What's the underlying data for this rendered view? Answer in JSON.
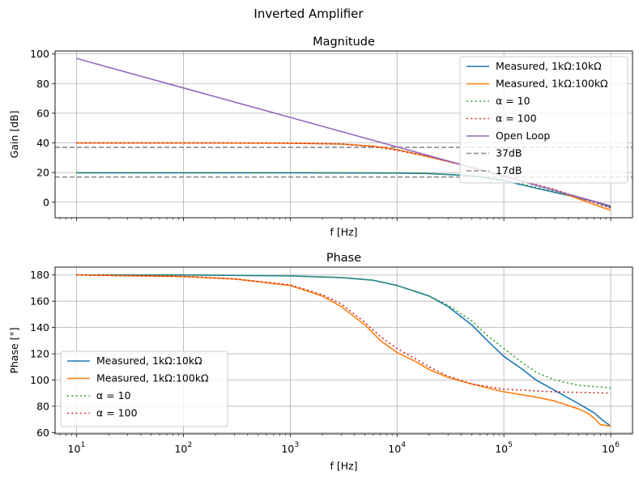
{
  "figure": {
    "suptitle": "Inverted Amplifier"
  },
  "colors": {
    "measured_10k": "#1f77b4",
    "measured_100k": "#ff7f0e",
    "alpha_10": "#2ca02c",
    "alpha_100": "#d62728",
    "open_loop": "#9467bd",
    "ref_lines": "#8c8c8c",
    "grid": "#b0b0b0"
  },
  "chart_data": [
    {
      "type": "line",
      "title": "Magnitude",
      "xlabel": "f [Hz]",
      "ylabel": "Gain [dB]",
      "xscale": "log",
      "xlim": [
        6.3,
        1600000
      ],
      "ylim": [
        -10.5,
        102
      ],
      "yticks": [
        0,
        20,
        40,
        60,
        80,
        100
      ],
      "show_x_tick_labels": false,
      "grid": true,
      "legend_position": "top-right",
      "hlines": [
        {
          "name": "37dB",
          "y": 37,
          "color": "#8c8c8c",
          "dash": "dashed"
        },
        {
          "name": "17dB",
          "y": 17,
          "color": "#8c8c8c",
          "dash": "dashed"
        }
      ],
      "series": [
        {
          "name": "Measured, 1kΩ:10kΩ",
          "color": "#1f77b4",
          "dash": "solid",
          "x": [
            10,
            100,
            1000,
            10000,
            20000,
            40000,
            60000,
            100000,
            200000,
            400000,
            700000,
            1000000
          ],
          "y": [
            19.8,
            19.8,
            19.8,
            19.6,
            19.3,
            18.2,
            17.2,
            14.5,
            9.5,
            4.5,
            0.5,
            -3.5
          ]
        },
        {
          "name": "Measured, 1kΩ:100kΩ",
          "color": "#ff7f0e",
          "dash": "solid",
          "x": [
            10,
            100,
            1000,
            3000,
            6000,
            10000,
            20000,
            40000,
            100000,
            300000,
            1000000
          ],
          "y": [
            40,
            40,
            39.8,
            39.2,
            37.8,
            35.5,
            30.5,
            25.3,
            17.5,
            8.0,
            -5.5
          ]
        },
        {
          "name": "α = 10",
          "color": "#2ca02c",
          "dash": "dotted",
          "x": [
            10,
            100,
            1000,
            10000,
            20000,
            40000,
            60000,
            100000,
            200000,
            400000,
            700000,
            1000000
          ],
          "y": [
            20,
            20,
            20,
            19.8,
            19.4,
            18.4,
            17.3,
            15.0,
            10.0,
            5.0,
            0.5,
            -3.5
          ]
        },
        {
          "name": "α = 100",
          "color": "#d62728",
          "dash": "dotted",
          "x": [
            10,
            100,
            1000,
            3000,
            6000,
            10000,
            20000,
            40000,
            100000,
            300000,
            1000000
          ],
          "y": [
            40,
            40,
            39.9,
            39.3,
            37.5,
            35.0,
            30.8,
            25.2,
            17.8,
            8.5,
            -4.0
          ]
        },
        {
          "name": "Open Loop",
          "color": "#9467bd",
          "dash": "solid",
          "x": [
            10,
            1000000
          ],
          "y": [
            97,
            -2.5
          ]
        }
      ]
    },
    {
      "type": "line",
      "title": "Phase",
      "xlabel": "f [Hz]",
      "ylabel": "Phase [°]",
      "xscale": "log",
      "xlim": [
        6.3,
        1600000
      ],
      "ylim": [
        59,
        186
      ],
      "yticks": [
        60,
        80,
        100,
        120,
        140,
        160,
        180
      ],
      "xticks": [
        {
          "value": 10,
          "label": "10",
          "exp": "1"
        },
        {
          "value": 100,
          "label": "10",
          "exp": "2"
        },
        {
          "value": 1000,
          "label": "10",
          "exp": "3"
        },
        {
          "value": 10000,
          "label": "10",
          "exp": "4"
        },
        {
          "value": 100000,
          "label": "10",
          "exp": "5"
        },
        {
          "value": 1000000,
          "label": "10",
          "exp": "6"
        }
      ],
      "show_x_tick_labels": true,
      "grid": true,
      "legend_position": "lower-left",
      "series": [
        {
          "name": "Measured, 1kΩ:10kΩ",
          "color": "#1f77b4",
          "dash": "solid",
          "x": [
            10,
            100,
            1000,
            3000,
            6000,
            10000,
            20000,
            30000,
            50000,
            70000,
            100000,
            150000,
            200000,
            300000,
            500000,
            700000,
            850000,
            1000000
          ],
          "y": [
            180,
            180,
            179.3,
            178,
            176,
            172,
            164,
            156,
            142,
            130,
            118,
            108,
            100,
            92,
            82,
            75,
            69,
            65
          ]
        },
        {
          "name": "Measured, 1kΩ:100kΩ",
          "color": "#ff7f0e",
          "dash": "solid",
          "x": [
            10,
            100,
            300,
            1000,
            2000,
            3000,
            5000,
            7000,
            10000,
            15000,
            20000,
            30000,
            50000,
            100000,
            200000,
            300000,
            500000,
            600000,
            700000,
            800000,
            1000000
          ],
          "y": [
            180,
            178.8,
            177,
            172,
            164,
            156,
            142,
            130,
            121,
            114,
            108,
            102,
            97,
            91,
            87,
            84,
            78,
            75,
            71,
            66,
            65
          ]
        },
        {
          "name": "α = 10",
          "color": "#2ca02c",
          "dash": "dotted",
          "x": [
            10,
            100,
            1000,
            3000,
            6000,
            10000,
            20000,
            30000,
            50000,
            70000,
            100000,
            150000,
            200000,
            300000,
            500000,
            1000000
          ],
          "y": [
            180,
            180,
            179.4,
            178,
            176,
            172,
            164,
            157,
            145,
            134,
            124,
            113,
            106,
            100,
            96,
            94
          ]
        },
        {
          "name": "α = 100",
          "color": "#d62728",
          "dash": "dotted",
          "x": [
            10,
            100,
            300,
            1000,
            2000,
            3000,
            5000,
            7000,
            10000,
            15000,
            20000,
            30000,
            50000,
            100000,
            300000,
            1000000
          ],
          "y": [
            180,
            179,
            177,
            172.5,
            165,
            158,
            144,
            133,
            124,
            116,
            110,
            103,
            97,
            93,
            91,
            90
          ]
        }
      ]
    }
  ]
}
